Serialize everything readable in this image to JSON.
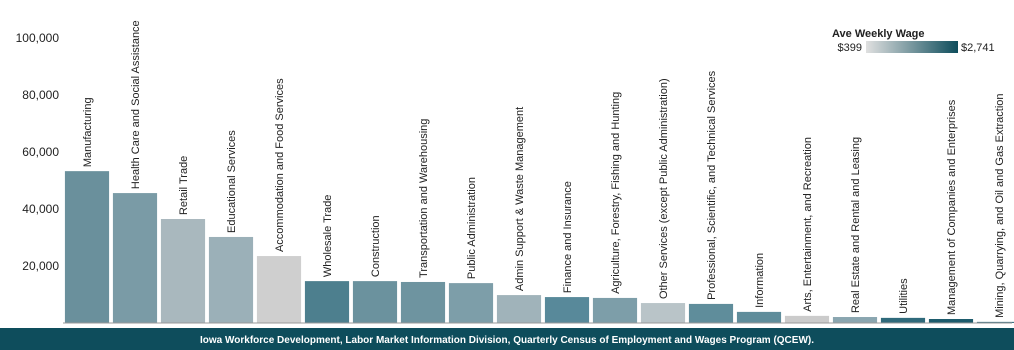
{
  "chart_data": {
    "type": "bar",
    "categories": [
      "Manufacturing",
      "Health Care and Social Assistance",
      "Retail Trade",
      "Educational Services",
      "Accommodation and Food Services",
      "Wholesale Trade",
      "Construction",
      "Transportation and Warehousing",
      "Public Administration",
      "Admin Support & Waste Management",
      "Finance and Insurance",
      "Agriculture, Forestry, Fishing and Hunting",
      "Other Services (except Public Administration)",
      "Professional, Scientific, and Technical Services",
      "Information",
      "Arts, Entertainment, and Recreation",
      "Real Estate and Rental and Leasing",
      "Utilities",
      "Management of Companies and Enterprises",
      "Mining, Quarrying, and Oil and Gas Extraction"
    ],
    "values": [
      53300,
      45600,
      36500,
      30200,
      23500,
      14700,
      14700,
      14400,
      14000,
      9800,
      9100,
      8800,
      7000,
      6700,
      3900,
      2500,
      2100,
      1800,
      1400,
      400
    ],
    "colors": [
      "#6a909c",
      "#7a9ba6",
      "#a9b8be",
      "#9bb0b8",
      "#cfcfcf",
      "#4d7f8e",
      "#6b929e",
      "#6e94a0",
      "#7d9ea9",
      "#a0b3ba",
      "#58899a",
      "#7d9ea9",
      "#b9c4c8",
      "#5f8d9b",
      "#5f8d9b",
      "#cbcbcb",
      "#8aa6b0",
      "#2f6a7b",
      "#1c5b6c",
      "#3e7485"
    ],
    "ylim": [
      0,
      106000
    ],
    "yticks": [
      {
        "value": 20000,
        "label": "20,000"
      },
      {
        "value": 40000,
        "label": "40,000"
      },
      {
        "value": 60000,
        "label": "60,000"
      },
      {
        "value": 80000,
        "label": "80,000"
      },
      {
        "value": 100000,
        "label": "100,000"
      }
    ],
    "color_scale": {
      "title": "Ave Weekly Wage",
      "range": [
        399,
        2741
      ],
      "range_labels": [
        "$399",
        "$2,741"
      ],
      "colors": [
        "#e0e0e0",
        "#0e4d5c"
      ]
    },
    "source": "Iowa Workforce Development, Labor Market Information Division, Quarterly Census of Employment and Wages Program (QCEW)."
  }
}
